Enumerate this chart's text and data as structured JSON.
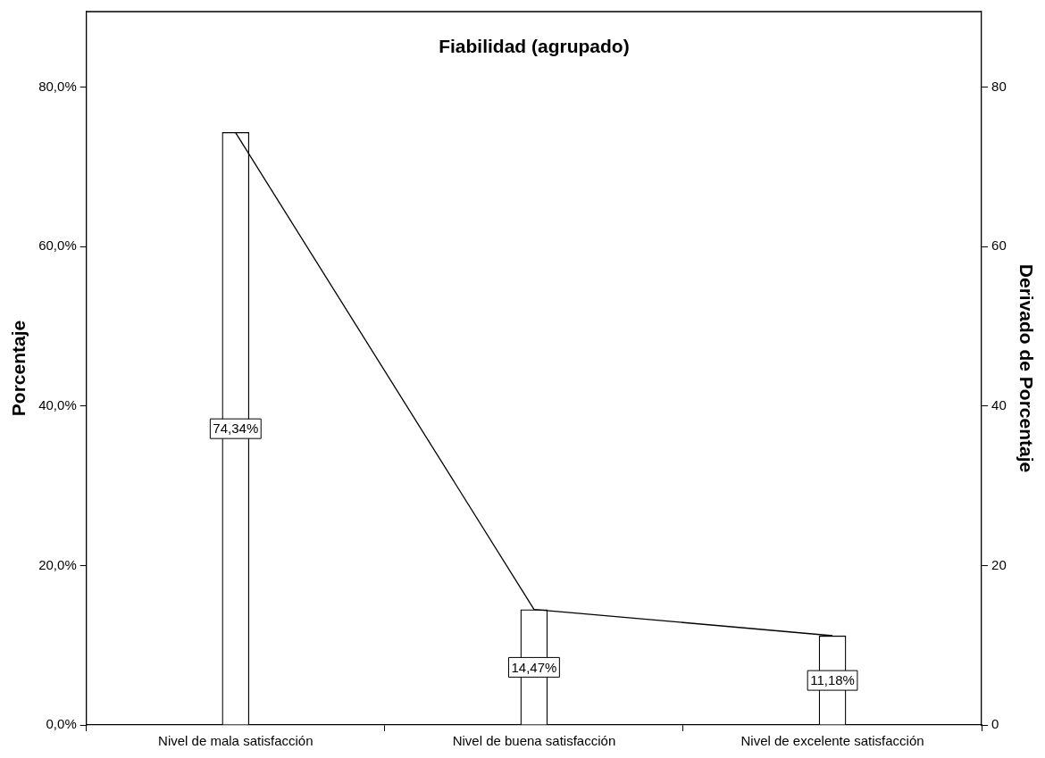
{
  "chart_data": {
    "type": "bar",
    "title": "Fiabilidad (agrupado)",
    "ylabel": "Porcentaje",
    "y2label": "Derivado de Porcentaje",
    "categories": [
      "Nivel de mala satisfacción",
      "Nivel de buena satisfacción",
      "Nivel de excelente satisfacción"
    ],
    "series": [
      {
        "color": "#ffffff",
        "values": [
          74.34,
          14.47,
          11.18
        ],
        "value_labels": [
          "74,34%",
          "14,47%",
          "11,18%"
        ]
      },
      {
        "type": "line",
        "axis": "y2",
        "color": "#000000",
        "values": [
          74.3,
          14.5,
          11.2
        ]
      }
    ],
    "ylim": [
      0,
      89.5
    ],
    "yticks": [
      {
        "value": 0,
        "label": "0,0%"
      },
      {
        "value": 20,
        "label": "20,0%"
      },
      {
        "value": 40,
        "label": "40,0%"
      },
      {
        "value": 60,
        "label": "60,0%"
      },
      {
        "value": 80,
        "label": "80,0%"
      }
    ],
    "y2lim": [
      0,
      89.5
    ],
    "y2ticks": [
      0,
      20,
      40,
      60,
      80
    ],
    "grid": false,
    "legend": false,
    "marker": "none",
    "line_style": "solid"
  }
}
